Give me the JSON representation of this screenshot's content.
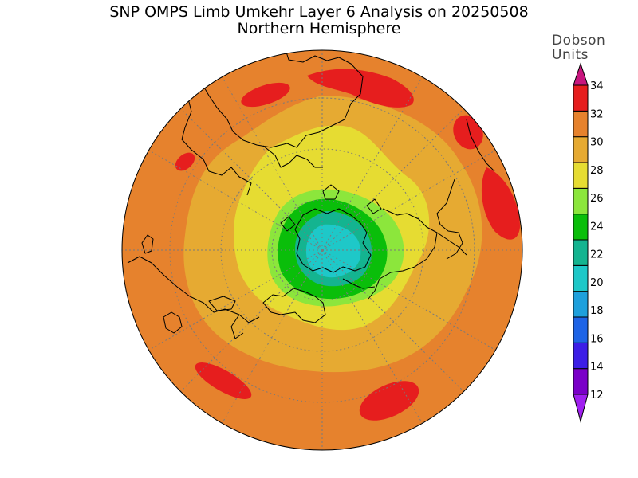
{
  "title": "SNP OMPS Limb Umkehr Layer 6 Analysis on 20250508",
  "subtitle": "Northern Hemisphere",
  "colorbar": {
    "units_line1": "Dobson",
    "units_line2": "Units",
    "ticks": [
      "34",
      "32",
      "30",
      "28",
      "26",
      "24",
      "22",
      "20",
      "18",
      "16",
      "14",
      "12"
    ],
    "colors": [
      "#7a00c8",
      "#3c1ee6",
      "#1e64e6",
      "#1ea0dc",
      "#1ec8c8",
      "#14b490",
      "#0abe0a",
      "#8ce63c",
      "#e6dc32",
      "#e6aa32",
      "#e6822d",
      "#e61e1e"
    ],
    "over_color": "#c8167e",
    "under_color": "#a020f0"
  },
  "map": {
    "projection": "north polar stereographic",
    "field": "layer 6 ozone (Dobson Units)"
  }
}
